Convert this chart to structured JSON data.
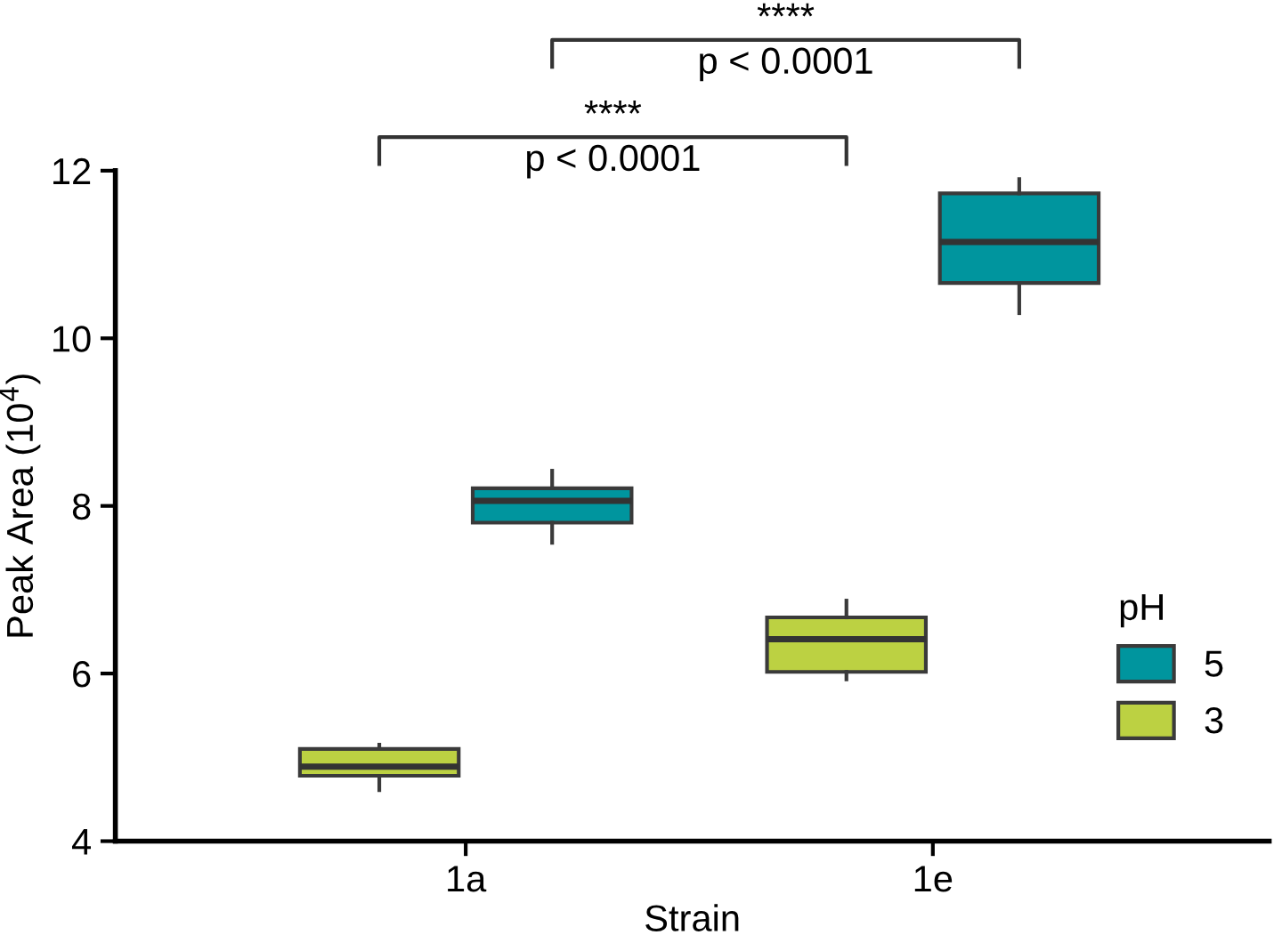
{
  "chart_data": {
    "type": "box",
    "xlabel": "Strain",
    "ylabel": "Peak Area (10$^{4}$)",
    "categories": [
      "1a",
      "1e"
    ],
    "ylim": [
      4,
      12
    ],
    "yticks": [
      4,
      6,
      8,
      10,
      12
    ],
    "legend": "lower right",
    "legend_title": "pH",
    "grid": false,
    "series": [
      {
        "name": "3",
        "color": "#bcd142",
        "boxes": [
          {
            "low": 4.61,
            "q1": 4.78,
            "median": 4.89,
            "q3": 5.1,
            "high": 5.15
          },
          {
            "low": 5.93,
            "q1": 6.02,
            "median": 6.41,
            "q3": 6.67,
            "high": 6.87
          }
        ]
      },
      {
        "name": "5",
        "color": "#00959e",
        "boxes": [
          {
            "low": 7.56,
            "q1": 7.8,
            "median": 8.06,
            "q3": 8.21,
            "high": 8.42
          },
          {
            "low": 10.3,
            "q1": 10.66,
            "median": 11.15,
            "q3": 11.73,
            "high": 11.9
          }
        ]
      }
    ],
    "annotations": [
      "****",
      "p < 0.0001",
      "****",
      "p < 0.0001"
    ]
  }
}
